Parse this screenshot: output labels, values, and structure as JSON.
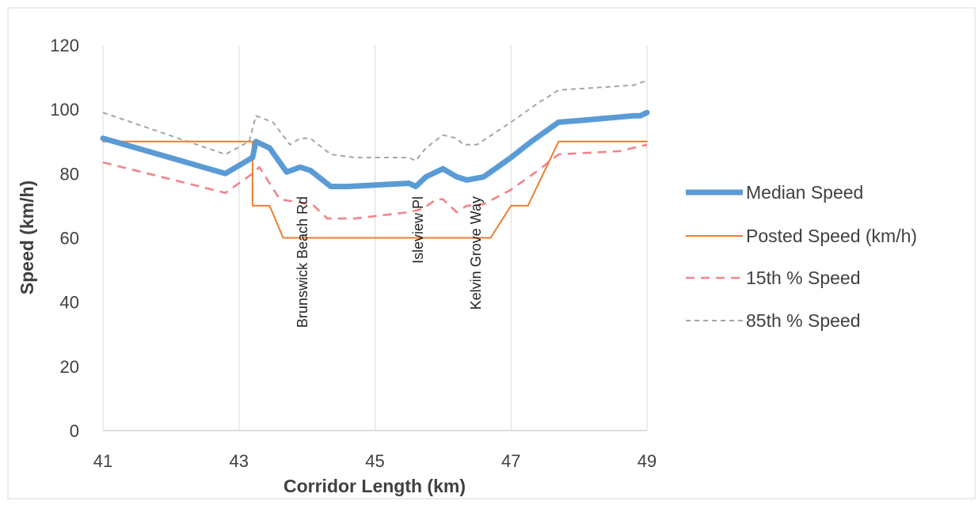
{
  "chart_data": {
    "type": "line",
    "title": "",
    "xlabel": "Corridor Length (km)",
    "ylabel": "Speed (km/h)",
    "xlim": [
      41,
      49
    ],
    "ylim": [
      0,
      120
    ],
    "x_ticks": [
      "41",
      "43",
      "45",
      "47",
      "49"
    ],
    "y_ticks": [
      "0",
      "20",
      "40",
      "60",
      "80",
      "100",
      "120"
    ],
    "grid": "vertical",
    "legend_position": "right",
    "series": [
      {
        "name": "Median Speed",
        "color": "#5b9bd5",
        "style": "solid-thick",
        "points": [
          [
            41.0,
            91
          ],
          [
            42.8,
            80
          ],
          [
            43.2,
            85
          ],
          [
            43.25,
            90
          ],
          [
            43.45,
            88
          ],
          [
            43.7,
            80.5
          ],
          [
            43.9,
            82
          ],
          [
            44.05,
            81
          ],
          [
            44.35,
            76
          ],
          [
            44.6,
            76
          ],
          [
            45.5,
            77
          ],
          [
            45.6,
            76
          ],
          [
            45.75,
            79
          ],
          [
            46.0,
            81.5
          ],
          [
            46.2,
            79
          ],
          [
            46.35,
            78
          ],
          [
            46.6,
            79
          ],
          [
            47.0,
            85
          ],
          [
            47.3,
            90
          ],
          [
            47.7,
            96
          ],
          [
            48.0,
            96.5
          ],
          [
            48.8,
            98
          ],
          [
            48.9,
            98
          ],
          [
            49.0,
            99
          ]
        ]
      },
      {
        "name": "Posted Speed (km/h)",
        "color": "#ed7d31",
        "style": "solid-thin",
        "points": [
          [
            41.0,
            90
          ],
          [
            43.2,
            90
          ],
          [
            43.2,
            70
          ],
          [
            43.45,
            70
          ],
          [
            43.65,
            60
          ],
          [
            46.7,
            60
          ],
          [
            47.0,
            70
          ],
          [
            47.25,
            70
          ],
          [
            47.7,
            90
          ],
          [
            49.0,
            90
          ]
        ]
      },
      {
        "name": "15th % Speed",
        "color": "#f4838a",
        "style": "dashed",
        "points": [
          [
            41.0,
            83.5
          ],
          [
            42.8,
            74
          ],
          [
            43.2,
            80
          ],
          [
            43.3,
            82
          ],
          [
            43.6,
            72
          ],
          [
            43.9,
            71
          ],
          [
            44.1,
            70
          ],
          [
            44.3,
            66
          ],
          [
            44.7,
            66
          ],
          [
            45.5,
            68
          ],
          [
            45.7,
            69
          ],
          [
            45.9,
            72
          ],
          [
            46.0,
            72
          ],
          [
            46.2,
            68
          ],
          [
            46.35,
            70
          ],
          [
            46.6,
            70.5
          ],
          [
            47.0,
            75
          ],
          [
            47.4,
            81
          ],
          [
            47.7,
            86
          ],
          [
            48.6,
            87
          ],
          [
            49.0,
            89
          ]
        ]
      },
      {
        "name": "85th % Speed",
        "color": "#a5a5a5",
        "style": "dashed-short",
        "points": [
          [
            41.0,
            99
          ],
          [
            42.8,
            86
          ],
          [
            43.15,
            90
          ],
          [
            43.25,
            98
          ],
          [
            43.5,
            96
          ],
          [
            43.75,
            89
          ],
          [
            43.9,
            91
          ],
          [
            44.05,
            91
          ],
          [
            44.35,
            86
          ],
          [
            44.7,
            85
          ],
          [
            45.5,
            85
          ],
          [
            45.6,
            84
          ],
          [
            45.75,
            88
          ],
          [
            46.0,
            92
          ],
          [
            46.2,
            91
          ],
          [
            46.3,
            89
          ],
          [
            46.5,
            89
          ],
          [
            47.0,
            96
          ],
          [
            47.4,
            102
          ],
          [
            47.7,
            106
          ],
          [
            48.8,
            107.5
          ],
          [
            49.0,
            109
          ]
        ]
      }
    ],
    "annotations": [
      {
        "text": "Brunswick Beach Rd",
        "x": 44.1
      },
      {
        "text": "Isleview Pl",
        "x": 45.8
      },
      {
        "text": "Kelvin Grove Way",
        "x": 46.65
      }
    ]
  }
}
